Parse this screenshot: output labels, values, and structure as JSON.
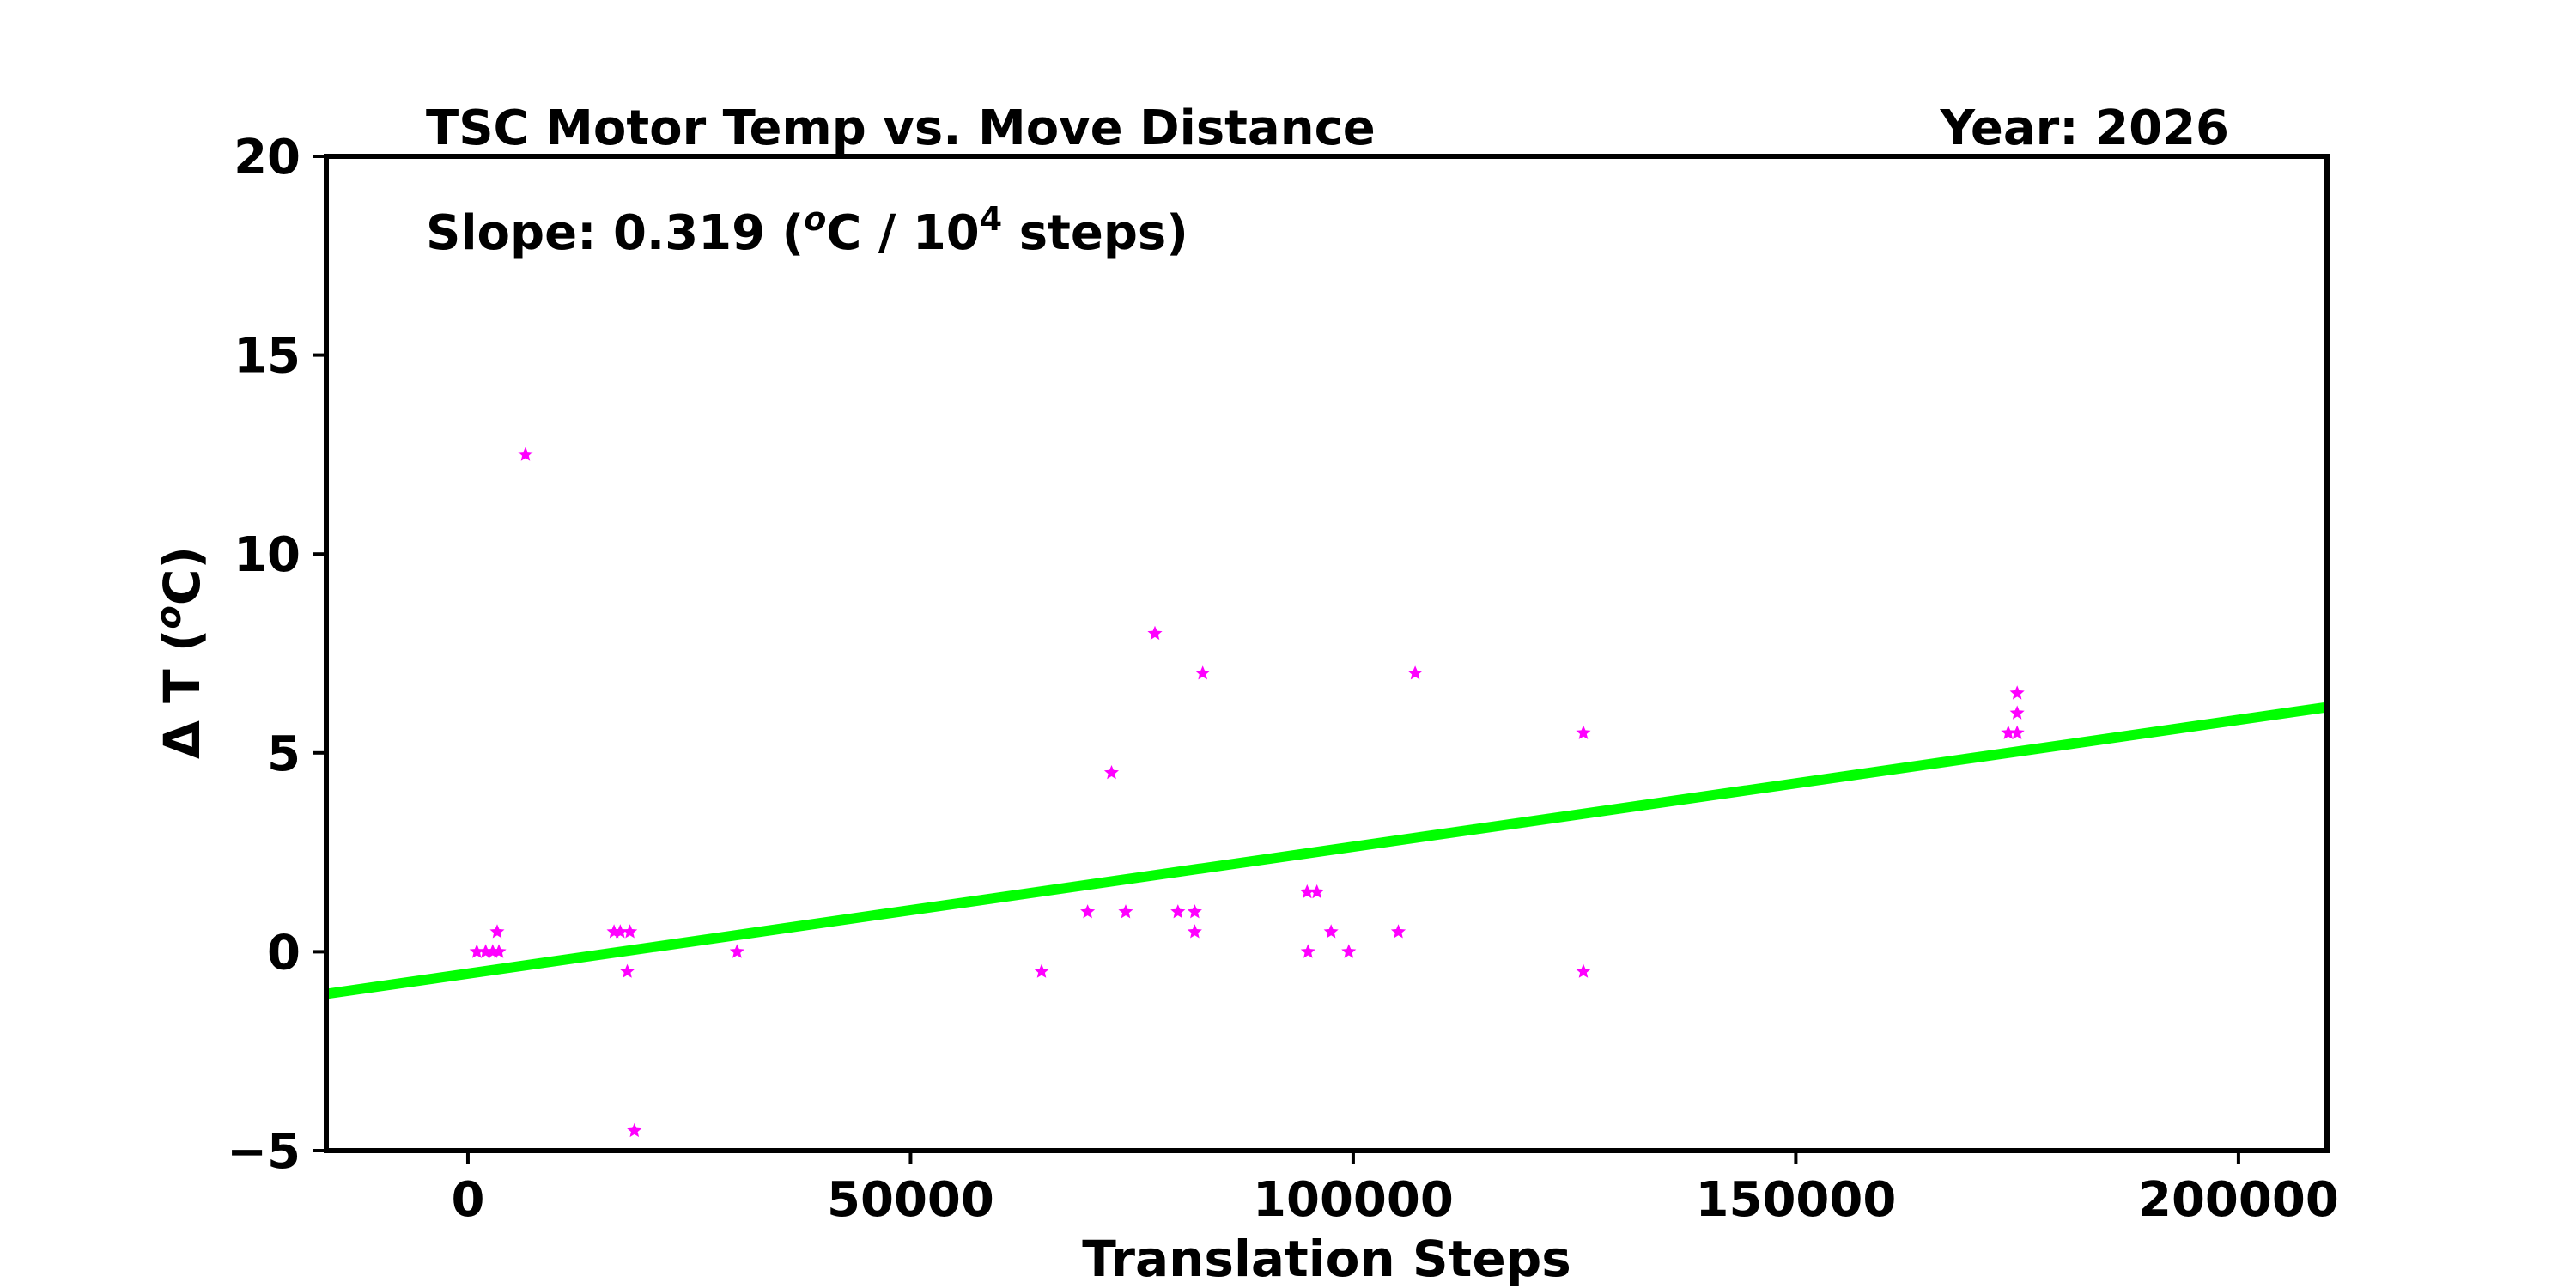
{
  "chart_data": {
    "type": "scatter",
    "title": "TSC Motor Temp vs. Move Distance",
    "year_label": "Year: 2026",
    "slope_label": {
      "prefix": "Slope:  0.319 (",
      "sup_o": "o",
      "middle": "C / 10",
      "sup_exp": "4",
      "suffix": " steps)"
    },
    "xlabel": "Translation Steps",
    "ylabel": {
      "prefix": "Δ T (",
      "sup_o": "o",
      "suffix": "C)"
    },
    "xlim": [
      -16000,
      210000
    ],
    "ylim": [
      -5,
      20
    ],
    "xticks": [
      0,
      50000,
      100000,
      150000,
      200000
    ],
    "xtick_labels": [
      "0",
      "50000",
      "100000",
      "150000",
      "200000"
    ],
    "yticks": [
      -5,
      0,
      5,
      10,
      15,
      20
    ],
    "ytick_labels": [
      "−5",
      "0",
      "5",
      "10",
      "15",
      "20"
    ],
    "grid": false,
    "colors": {
      "points": "#ff00ff",
      "fit_line": "#00ff00",
      "axes": "#000000"
    },
    "points": [
      {
        "x": 1000,
        "y": 0
      },
      {
        "x": 2000,
        "y": 0
      },
      {
        "x": 2800,
        "y": 0
      },
      {
        "x": 3500,
        "y": 0
      },
      {
        "x": 3300,
        "y": 0.5
      },
      {
        "x": 6500,
        "y": 12.5
      },
      {
        "x": 16500,
        "y": 0.5
      },
      {
        "x": 17200,
        "y": 0.5
      },
      {
        "x": 18300,
        "y": 0.5
      },
      {
        "x": 18000,
        "y": -0.5
      },
      {
        "x": 18800,
        "y": -4.5
      },
      {
        "x": 30400,
        "y": 0
      },
      {
        "x": 64800,
        "y": -0.5
      },
      {
        "x": 70000,
        "y": 1
      },
      {
        "x": 72700,
        "y": 4.5
      },
      {
        "x": 74300,
        "y": 1
      },
      {
        "x": 77600,
        "y": 8
      },
      {
        "x": 80200,
        "y": 1
      },
      {
        "x": 82100,
        "y": 1
      },
      {
        "x": 82100,
        "y": 0.5
      },
      {
        "x": 83000,
        "y": 7
      },
      {
        "x": 94800,
        "y": 1.5
      },
      {
        "x": 95900,
        "y": 1.5
      },
      {
        "x": 94900,
        "y": 0
      },
      {
        "x": 97500,
        "y": 0.5
      },
      {
        "x": 99500,
        "y": 0
      },
      {
        "x": 105100,
        "y": 0.5
      },
      {
        "x": 107000,
        "y": 7
      },
      {
        "x": 126000,
        "y": 5.5
      },
      {
        "x": 126000,
        "y": -0.5
      },
      {
        "x": 174000,
        "y": 5.5
      },
      {
        "x": 175000,
        "y": 5.5
      },
      {
        "x": 175000,
        "y": 6.5
      },
      {
        "x": 175000,
        "y": 6
      }
    ],
    "fit_line": {
      "slope_per_step": 3.19e-05,
      "intercept": -0.55
    }
  }
}
